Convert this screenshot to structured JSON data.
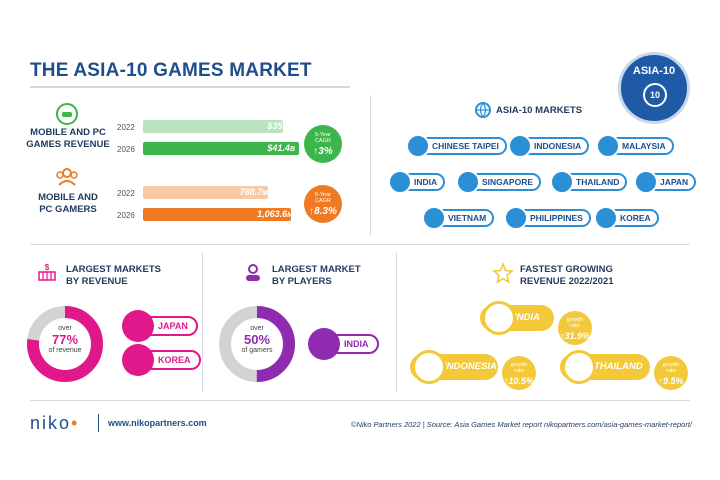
{
  "title": "THE ASIA-10 GAMES MARKET",
  "badge": {
    "text": "ASIA-10",
    "icon_number": "10",
    "icon": "globe-icon"
  },
  "revenue": {
    "label_line1": "MOBILE AND PC",
    "label_line2": "GAMES REVENUE",
    "rows": [
      {
        "year": "2022",
        "value": "$35.9",
        "suffix": "B"
      },
      {
        "year": "2026",
        "value": "$41.4",
        "suffix": "B"
      }
    ],
    "cagr_label_1": "5-Year",
    "cagr_label_2": "CAGR",
    "cagr_value": "3%"
  },
  "gamers": {
    "label_line1": "MOBILE AND",
    "label_line2": "PC GAMERS",
    "rows": [
      {
        "year": "2022",
        "value": "788.7",
        "suffix": "M"
      },
      {
        "year": "2026",
        "value": "1,063.6",
        "suffix": "M"
      }
    ],
    "cagr_label_1": "5-Year",
    "cagr_label_2": "CAGR",
    "cagr_value": "8.3%"
  },
  "markets": {
    "title": "ASIA-10 MARKETS",
    "items": [
      "CHINESE TAIPEI",
      "INDONESIA",
      "MALAYSIA",
      "INDIA",
      "SINGAPORE",
      "THAILAND",
      "JAPAN",
      "VIETNAM",
      "PHILIPPINES",
      "KOREA"
    ]
  },
  "largest_revenue": {
    "title_line1": "LARGEST MARKETS",
    "title_line2": "BY REVENUE",
    "ring_top": "over",
    "ring_value": "77%",
    "ring_bottom": "of revenue",
    "share": 0.77,
    "markets": [
      "JAPAN",
      "KOREA"
    ]
  },
  "largest_players": {
    "title_line1": "LARGEST MARKET",
    "title_line2": "BY PLAYERS",
    "ring_top": "over",
    "ring_value": "50%",
    "ring_bottom": "of gamers",
    "share": 0.5,
    "market": "INDIA"
  },
  "fastest": {
    "title_line1": "FASTEST GROWING",
    "title_line2": "REVENUE 2022/2021",
    "rate_label_1": "growth",
    "rate_label_2": "rate",
    "items": [
      {
        "name": "INDIA",
        "rate": "31.9%"
      },
      {
        "name": "INDONESIA",
        "rate": "10.5%"
      },
      {
        "name": "THAILAND",
        "rate": "9.5%"
      }
    ]
  },
  "footer": {
    "logo": "niko",
    "url": "www.nikopartners.com",
    "source": "©Niko Partners 2022  |  Source: Asia Games Market report nikopartners.com/asia-games-market-report/"
  },
  "colors": {
    "navy": "#1f4e8c",
    "green": "#3cb54a",
    "green_light": "#b8e3be",
    "orange": "#f07a22",
    "orange_light": "#f9c9a4",
    "blue": "#2b8fd6",
    "magenta": "#e0188c",
    "purple": "#8e2bb0",
    "yellow": "#f3c93a"
  }
}
